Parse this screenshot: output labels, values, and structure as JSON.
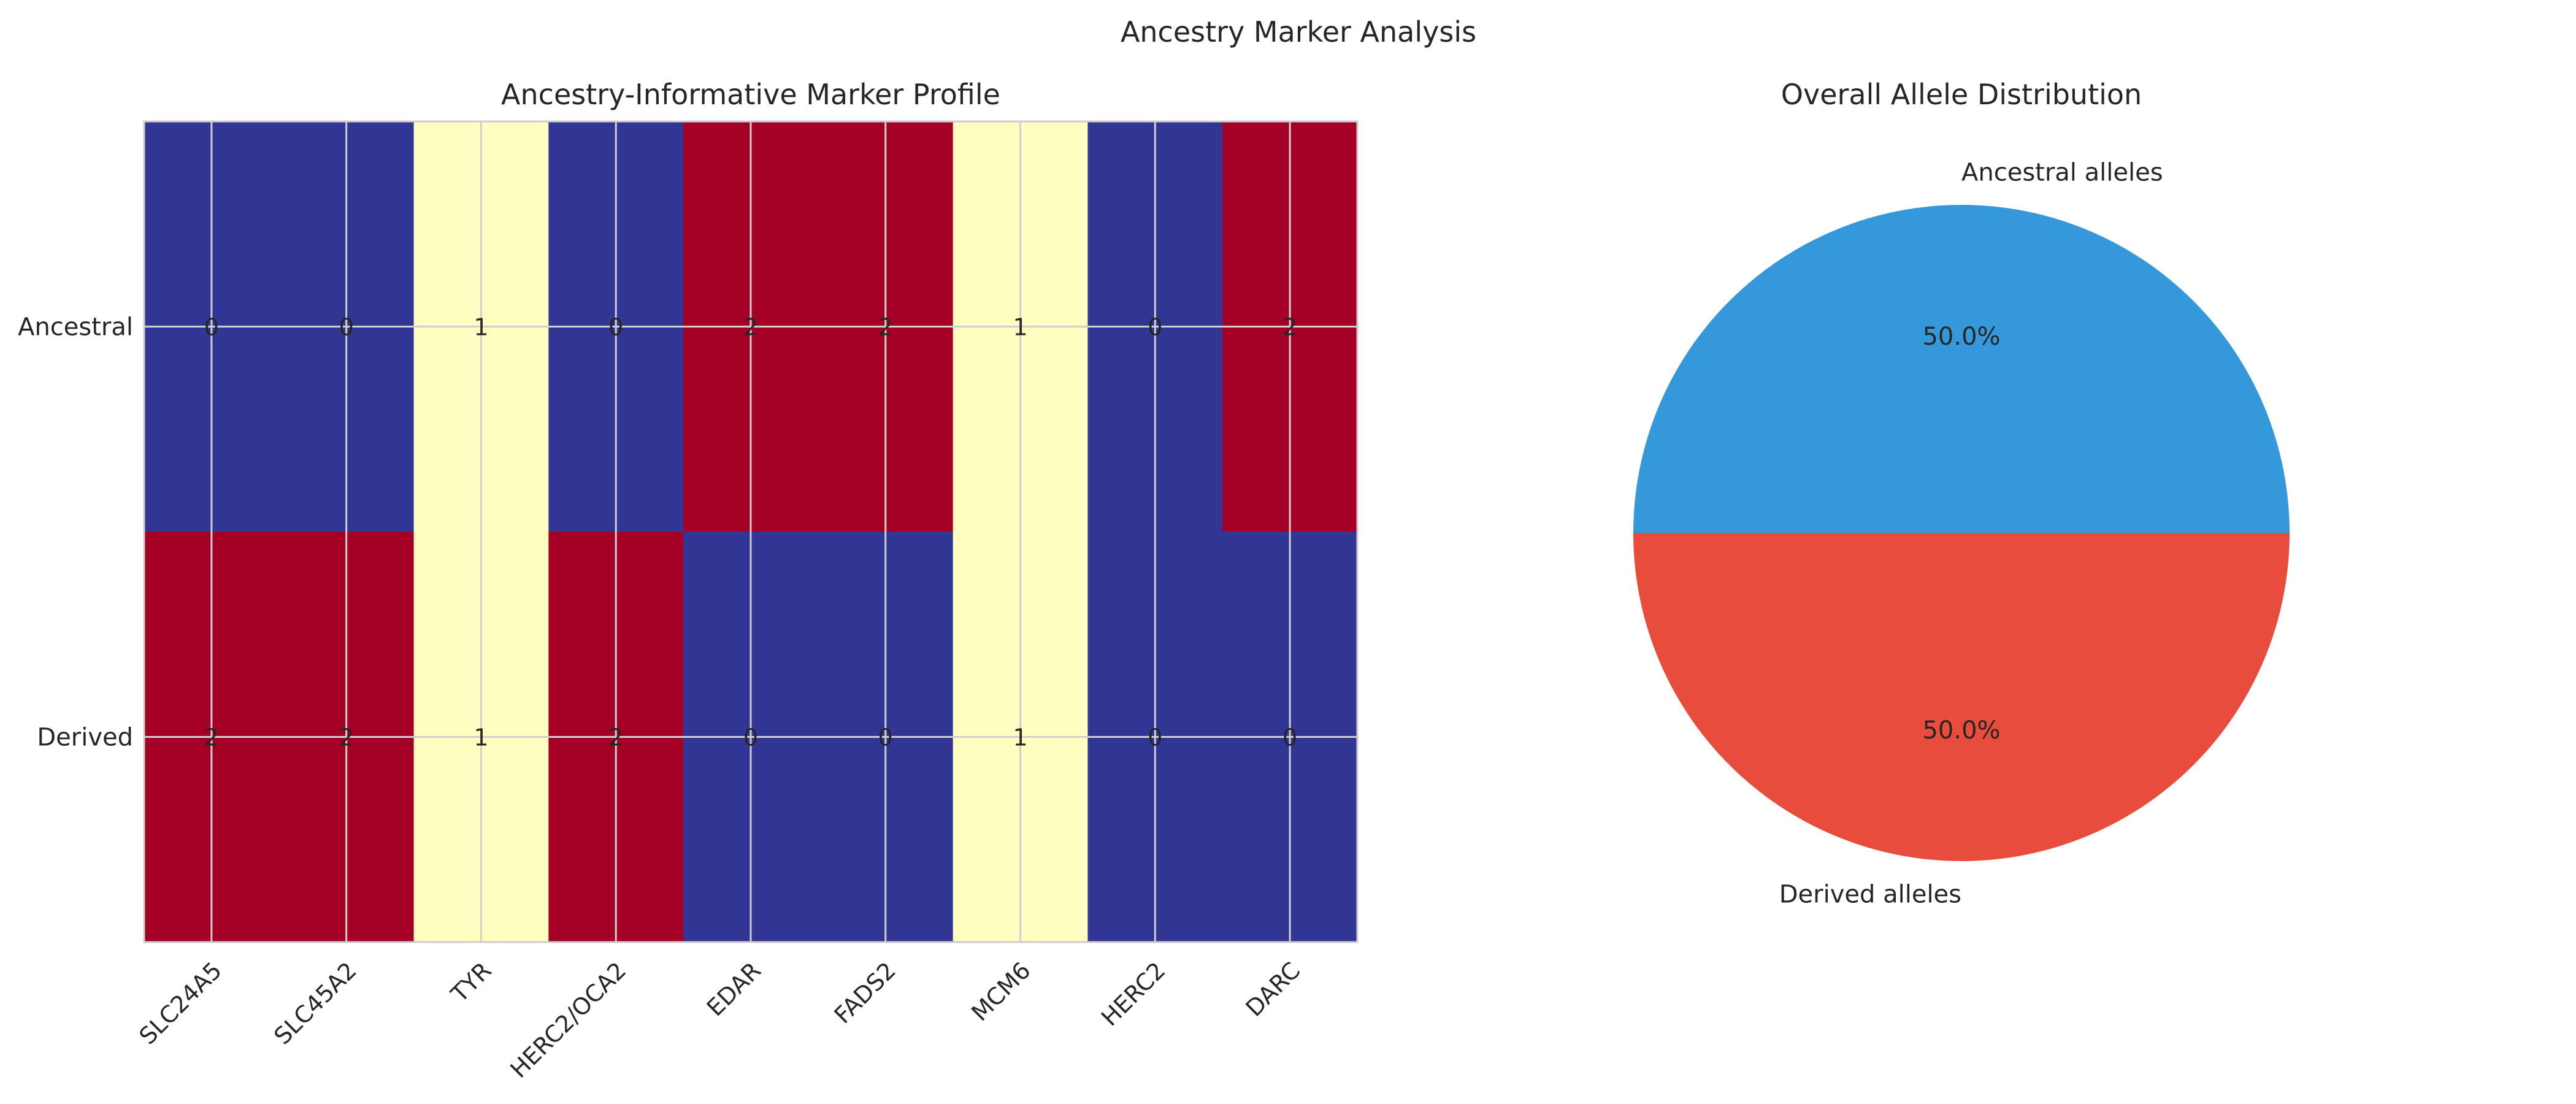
{
  "figure": {
    "suptitle": "Ancestry Marker Analysis"
  },
  "chart_data": [
    {
      "type": "heatmap",
      "title": "Ancestry-Informative Marker Profile",
      "x_categories": [
        "SLC24A5",
        "SLC45A2",
        "TYR",
        "HERC2/OCA2",
        "EDAR",
        "FADS2",
        "MCM6",
        "HERC2",
        "DARC"
      ],
      "y_categories": [
        "Ancestral",
        "Derived"
      ],
      "values": [
        [
          0,
          0,
          1,
          0,
          2,
          2,
          1,
          0,
          2
        ],
        [
          2,
          2,
          1,
          2,
          0,
          0,
          1,
          0,
          0
        ]
      ],
      "value_range": [
        0,
        2
      ],
      "colormap": {
        "0": "#313695",
        "1": "#fefec0",
        "2": "#a50026"
      },
      "annotations": true,
      "grid": true
    },
    {
      "type": "pie",
      "title": "Overall Allele Distribution",
      "labels": [
        "Ancestral alleles",
        "Derived alleles"
      ],
      "values": [
        50.0,
        50.0
      ],
      "percent_labels": [
        "50.0%",
        "50.0%"
      ],
      "colors": [
        "#3498db",
        "#e74c3c"
      ]
    }
  ]
}
